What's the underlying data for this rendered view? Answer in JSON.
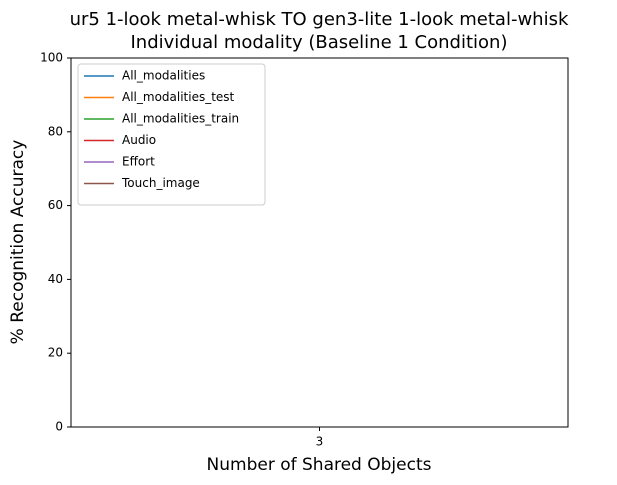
{
  "chart_data": {
    "type": "line",
    "title": [
      "ur5 1-look metal-whisk TO gen3-lite 1-look metal-whisk",
      "Individual modality (Baseline 1 Condition)"
    ],
    "x_label": "Number of Shared Objects",
    "y_label": "% Recognition Accuracy",
    "categories": [
      "3"
    ],
    "series": [
      {
        "name": "All_modalities",
        "color": "#1f77b4",
        "values": [
          null
        ]
      },
      {
        "name": "All_modalities_test",
        "color": "#ff7f0e",
        "values": [
          null
        ]
      },
      {
        "name": "All_modalities_train",
        "color": "#2ca02c",
        "values": [
          null
        ]
      },
      {
        "name": "Audio",
        "color": "#d62728",
        "values": [
          null
        ]
      },
      {
        "name": "Effort",
        "color": "#9467bd",
        "values": [
          null
        ]
      },
      {
        "name": "Touch_image",
        "color": "#8c564b",
        "values": [
          null
        ]
      }
    ],
    "ylim": [
      0,
      100
    ],
    "yticks": [
      0,
      20,
      40,
      60,
      80,
      100
    ],
    "legend": "upper left"
  }
}
